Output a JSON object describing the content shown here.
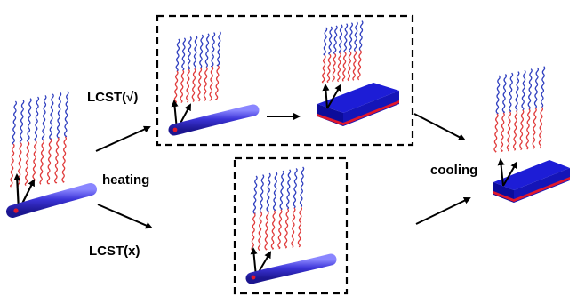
{
  "labels": {
    "lcst_yes": "LCST(√)",
    "heating": "heating",
    "lcst_no": "LCST(x)",
    "cooling": "cooling"
  },
  "colors": {
    "rod": "#3c34d8",
    "rod_highlight": "#8a86ff",
    "slab_top": "#1d1dd6",
    "slab_side": "#0c0c9a",
    "slab_stripe": "#e0182c",
    "chain_red": "#e03b3b",
    "chain_blue": "#2f3fbf",
    "arrow": "#000000",
    "dash_box": "#000000"
  },
  "icons": [
    "polymer-rod-icon",
    "polymer-slab-icon",
    "grafted-chains-icon",
    "vector-arrows-icon",
    "process-arrow-icon"
  ]
}
